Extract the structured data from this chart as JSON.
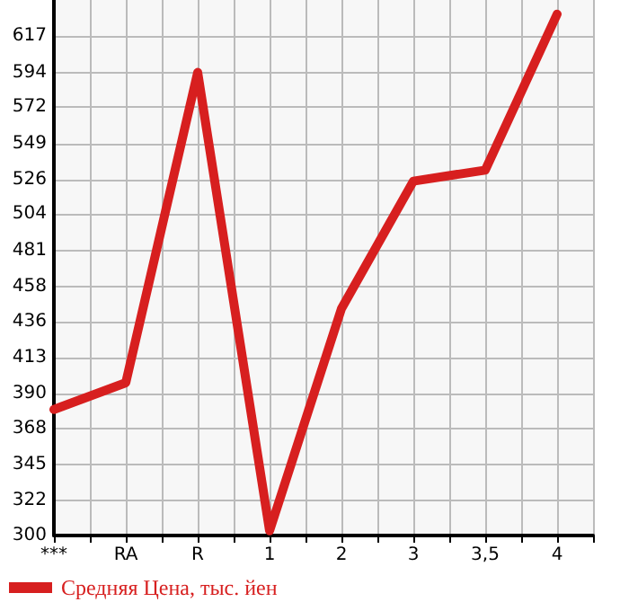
{
  "chart_data": {
    "type": "line",
    "categories": [
      "***",
      "RA",
      "R",
      "1",
      "2",
      "3",
      "3,5",
      "4"
    ],
    "series": [
      {
        "name": "Средняя Цена, тыс. йен",
        "color": "#d71f1f",
        "values": [
          380,
          397,
          594,
          303,
          444,
          525,
          532,
          631
        ]
      }
    ],
    "ylim": [
      300,
      640
    ],
    "yticks": [
      300,
      322,
      345,
      368,
      390,
      413,
      436,
      458,
      481,
      504,
      526,
      549,
      572,
      594,
      617
    ],
    "grid": true,
    "legend": "bottom left",
    "marker": "none",
    "line_style": "solid"
  }
}
